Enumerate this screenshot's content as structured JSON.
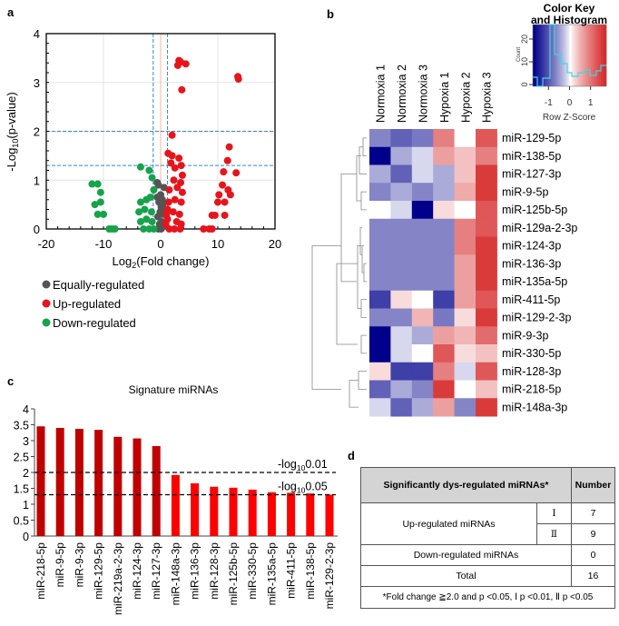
{
  "panels": {
    "a": "a",
    "b": "b",
    "c": "c",
    "d": "d"
  },
  "chart_data": [
    {
      "type": "scatter",
      "xlabel_main": "Log",
      "xlabel_sub": "2",
      "xlabel_rest": "(Fold change)",
      "ylabel_main": "-Log",
      "ylabel_sub": "10",
      "ylabel_rest": "(p-value)",
      "xlim": [
        -20,
        20
      ],
      "ylim": [
        0,
        4
      ],
      "xticks": [
        "-20",
        "-10",
        "0",
        "10",
        "20"
      ],
      "yticks": [
        "0",
        "1",
        "2",
        "3",
        "4"
      ],
      "grid": true,
      "threshold_lines": {
        "x": [
          -1.3,
          1.2
        ],
        "y": [
          1.3,
          2
        ]
      },
      "legend_position": "bottom",
      "series": [
        {
          "name": "Equally-regulated",
          "color": "#555555",
          "points": [
            [
              0.6,
              0.85
            ],
            [
              -0.6,
              0.95
            ],
            [
              -0.4,
              0.9
            ],
            [
              0,
              0.7
            ],
            [
              0.3,
              0.6
            ],
            [
              -0.3,
              0.55
            ],
            [
              0.1,
              0.45
            ],
            [
              -0.1,
              0.35
            ],
            [
              0.4,
              0.3
            ],
            [
              -0.5,
              0.25
            ],
            [
              0.2,
              0.15
            ],
            [
              -0.2,
              0.1
            ],
            [
              0.5,
              0.05
            ],
            [
              -0.4,
              0.0
            ],
            [
              0.1,
              0.0
            ],
            [
              0.4,
              0.5
            ],
            [
              -0.6,
              0.65
            ],
            [
              0.6,
              0.4
            ]
          ]
        },
        {
          "name": "Up-regulated",
          "color": "#e8141c",
          "points": [
            [
              3.2,
              3.45
            ],
            [
              3.5,
              3.42
            ],
            [
              4.4,
              3.38
            ],
            [
              3,
              3.35
            ],
            [
              3.7,
              2.85
            ],
            [
              13.5,
              3.12
            ],
            [
              13.6,
              3.07
            ],
            [
              2,
              1.92
            ],
            [
              1.3,
              1.55
            ],
            [
              2,
              1.5
            ],
            [
              3.2,
              1.45
            ],
            [
              3.6,
              1.3
            ],
            [
              2.5,
              1.25
            ],
            [
              1.8,
              1.35
            ],
            [
              3.8,
              1.1
            ],
            [
              2.3,
              1.0
            ],
            [
              3.5,
              0.95
            ],
            [
              1.5,
              0.8
            ],
            [
              2.9,
              0.85
            ],
            [
              3.8,
              0.75
            ],
            [
              1.4,
              0.55
            ],
            [
              2.5,
              0.6
            ],
            [
              3.6,
              0.55
            ],
            [
              1.2,
              0.4
            ],
            [
              2.2,
              0.35
            ],
            [
              3.3,
              0.3
            ],
            [
              1.2,
              0.2
            ],
            [
              2.8,
              0.15
            ],
            [
              3.6,
              0.1
            ],
            [
              1.5,
              0.0
            ],
            [
              2.4,
              0.0
            ],
            [
              3.4,
              0.0
            ],
            [
              1.0,
              0.3
            ],
            [
              0.9,
              0.1
            ],
            [
              12,
              1.68
            ],
            [
              11.7,
              1.4
            ],
            [
              13.2,
              1.15
            ],
            [
              11,
              1.17
            ],
            [
              10.8,
              0.9
            ],
            [
              11.8,
              0.8
            ],
            [
              12.2,
              0.7
            ],
            [
              10.2,
              0.7
            ],
            [
              10,
              0.55
            ],
            [
              11.2,
              0.55
            ],
            [
              9,
              0.28
            ],
            [
              9.5,
              0.28
            ],
            [
              11.2,
              0.28
            ],
            [
              7.5,
              0
            ],
            [
              8.5,
              0
            ],
            [
              9,
              0
            ]
          ]
        },
        {
          "name": "Down-regulated",
          "color": "#16a34a",
          "points": [
            [
              -12,
              0.92
            ],
            [
              -11,
              0.92
            ],
            [
              -10.5,
              0.75
            ],
            [
              -11.5,
              0.5
            ],
            [
              -10.5,
              0.55
            ],
            [
              -11,
              0.3
            ],
            [
              -10,
              0.3
            ],
            [
              -9,
              0
            ],
            [
              -8.5,
              0
            ],
            [
              -8,
              0
            ],
            [
              -3.5,
              1.27
            ],
            [
              -2,
              1.2
            ],
            [
              -1.5,
              1.05
            ],
            [
              -1.2,
              0.8
            ],
            [
              -3.5,
              0.55
            ],
            [
              -2.5,
              0.6
            ],
            [
              -1.8,
              0.65
            ],
            [
              -3.8,
              0.35
            ],
            [
              -2.8,
              0.4
            ],
            [
              -1.6,
              0.35
            ],
            [
              -3.5,
              0.15
            ],
            [
              -2.5,
              0.2
            ],
            [
              -1.5,
              0.15
            ],
            [
              -3,
              0
            ],
            [
              -2,
              0
            ],
            [
              -1.2,
              0
            ]
          ]
        }
      ]
    },
    {
      "type": "heatmap",
      "columns": [
        "Normoxia 1",
        "Normoxia 2",
        "Normoxia 3",
        "Hypoxia 1",
        "Hypoxia 2",
        "Hypoxia 3"
      ],
      "rows": [
        "miR-129-5p",
        "miR-138-5p",
        "miR-127-3p",
        "miR-9-5p",
        "miR-125b-5p",
        "miR-129a-2-3p",
        "miR-124-3p",
        "miR-136-3p",
        "miR-135a-5p",
        "miR-411-5p",
        "miR-129-2-3p",
        "miR-9-3p",
        "miR-330-5p",
        "miR-128-3p",
        "miR-218-5p",
        "miR-148a-3p"
      ],
      "values": [
        [
          -0.8,
          -1.1,
          -0.9,
          1.0,
          0,
          1.4
        ],
        [
          -2,
          -0.5,
          -0.2,
          0.7,
          0.4,
          1.0
        ],
        [
          -0.5,
          -1.1,
          -0.2,
          -0.5,
          0.4,
          1.7
        ],
        [
          -0.8,
          -0.5,
          -0.8,
          -0.5,
          0.6,
          1.7
        ],
        [
          0,
          -0.2,
          -2,
          0.2,
          0,
          1.4
        ],
        [
          -0.8,
          -0.8,
          -0.8,
          -0.8,
          1.0,
          1.4
        ],
        [
          -0.8,
          -0.8,
          -0.8,
          -0.8,
          1.0,
          1.7
        ],
        [
          -0.8,
          -0.8,
          -0.8,
          -0.8,
          0.7,
          1.7
        ],
        [
          -0.8,
          -0.8,
          -0.8,
          -0.8,
          0.7,
          1.7
        ],
        [
          -1.4,
          0.2,
          0,
          -1.4,
          0.7,
          1.4
        ],
        [
          -0.8,
          -0.8,
          0.5,
          -0.9,
          0.2,
          1.7
        ],
        [
          -2,
          -0.2,
          -0.5,
          0.7,
          0.5,
          1.2
        ],
        [
          -2,
          -0.2,
          0,
          1.4,
          0.2,
          0.4
        ],
        [
          0.2,
          -1.4,
          -1.4,
          1.0,
          -0.2,
          1.4
        ],
        [
          -1.1,
          -0.5,
          -0.8,
          1.7,
          0,
          0.4
        ],
        [
          -0.2,
          -1.1,
          -0.5,
          0.7,
          -0.8,
          1.7
        ]
      ],
      "color_low": "#00008b",
      "color_mid": "#ffffff",
      "color_high": "#d42020",
      "color_key": {
        "title_line1": "Color Key",
        "title_line2": "and Histogram",
        "xlabel": "Row Z-Score",
        "ylabel": "Count",
        "xticks": [
          "-1",
          "0",
          "1"
        ],
        "yticks": [
          "0",
          "10",
          "20"
        ]
      }
    },
    {
      "type": "bar",
      "title": "Signature miRNAs",
      "categories": [
        "miR-218-5p",
        "miR-9-5p",
        "miR-9-3p",
        "miR-129-5p",
        "miR-219a-2-3p",
        "miR-124-3p",
        "miR-127-3p",
        "miR-148a-3p",
        "miR-136-3p",
        "miR-128-3p",
        "miR-125b-5p",
        "miR-330-5p",
        "miR-135a-5p",
        "miR-411-5p",
        "miR-138-5p",
        "miR-129-2-3p"
      ],
      "values": [
        3.45,
        3.4,
        3.37,
        3.34,
        3.12,
        3.07,
        2.83,
        1.92,
        1.66,
        1.55,
        1.52,
        1.46,
        1.38,
        1.36,
        1.34,
        1.3
      ],
      "colors": {
        "p_lt_0.01": "#c00000",
        "p_lt_0.05": "#ff0000"
      },
      "ylim": [
        0,
        4
      ],
      "yticks": [
        "0",
        "0.5",
        "1",
        "1.5",
        "2",
        "2.5",
        "3",
        "3.5",
        "4"
      ],
      "reference_lines": [
        {
          "value": 2,
          "label_main": "-log",
          "label_sub": "10",
          "label_rest": "0.01"
        },
        {
          "value": 1.3,
          "label_main": "-log",
          "label_sub": "10",
          "label_rest": "0.05"
        }
      ]
    },
    {
      "type": "table",
      "header": [
        "Significantly dys-regulated miRNAs*",
        "Number"
      ],
      "rows": [
        {
          "label": "Up-regulated miRNAs",
          "sub": "Ⅰ",
          "value": "7"
        },
        {
          "label": "",
          "sub": "Ⅱ",
          "value": "9"
        },
        {
          "label": "Down-regulated miRNAs",
          "value": "0"
        },
        {
          "label": "Total",
          "value": "16"
        }
      ],
      "footnote": "*Fold change ≧2.0 and p <0.05, Ⅰ p <0.01, Ⅱ p <0.05"
    }
  ]
}
